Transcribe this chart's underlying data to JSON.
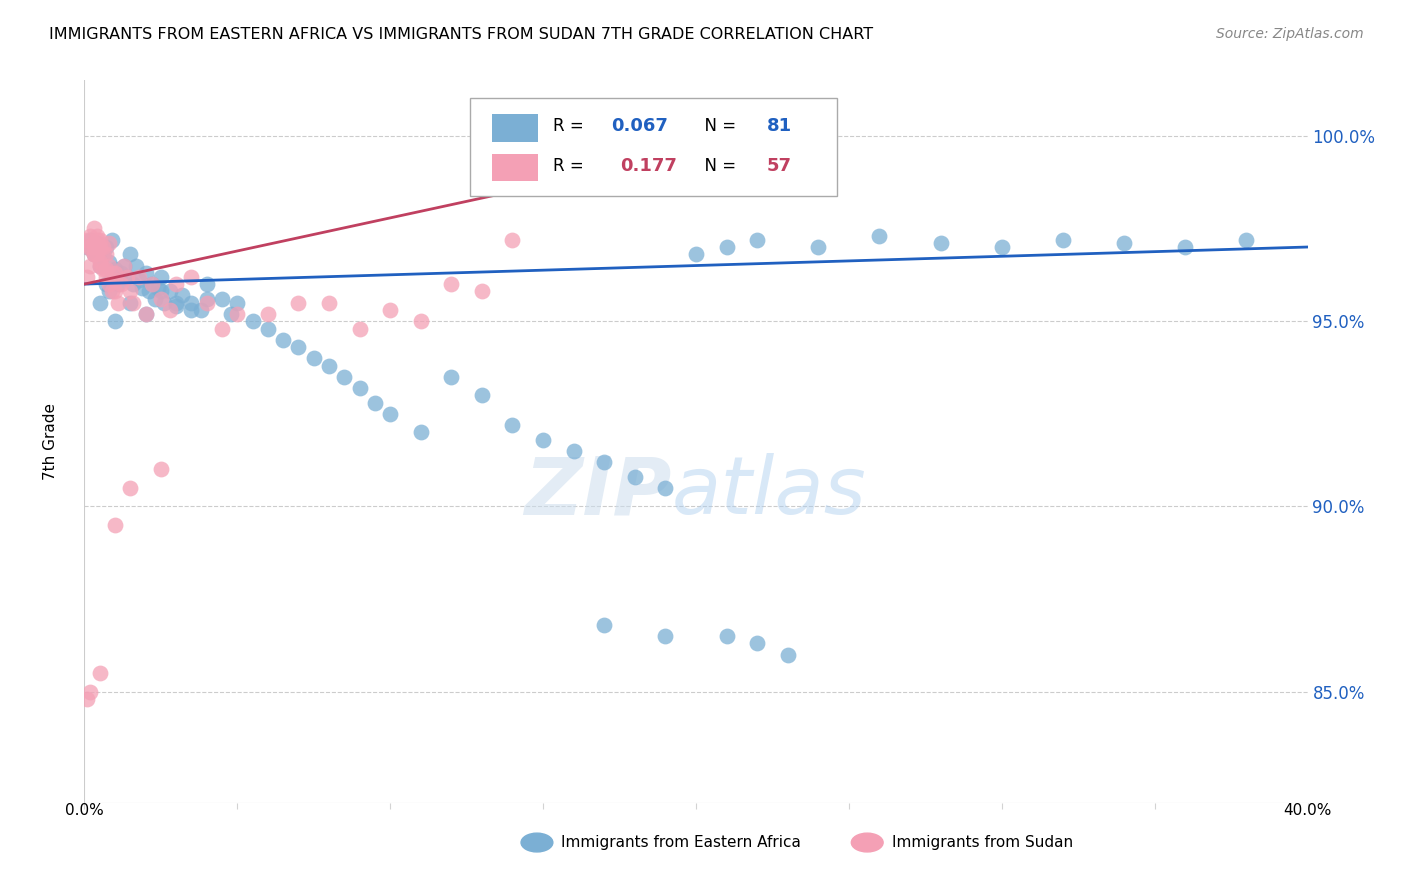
{
  "title": "IMMIGRANTS FROM EASTERN AFRICA VS IMMIGRANTS FROM SUDAN 7TH GRADE CORRELATION CHART",
  "source": "Source: ZipAtlas.com",
  "ylabel": "7th Grade",
  "y_ticks": [
    85.0,
    90.0,
    95.0,
    100.0
  ],
  "y_tick_labels": [
    "85.0%",
    "90.0%",
    "95.0%",
    "100.0%"
  ],
  "xlim": [
    0.0,
    0.4
  ],
  "ylim": [
    82.0,
    101.5
  ],
  "blue_color": "#7bafd4",
  "pink_color": "#f4a0b5",
  "blue_line_color": "#2060c0",
  "pink_line_color": "#c04060",
  "blue_scatter_x": [
    0.001,
    0.002,
    0.003,
    0.004,
    0.005,
    0.006,
    0.007,
    0.008,
    0.009,
    0.01,
    0.011,
    0.012,
    0.013,
    0.014,
    0.015,
    0.016,
    0.017,
    0.018,
    0.019,
    0.02,
    0.021,
    0.022,
    0.023,
    0.024,
    0.025,
    0.026,
    0.028,
    0.03,
    0.032,
    0.035,
    0.038,
    0.04,
    0.045,
    0.048,
    0.05,
    0.055,
    0.06,
    0.065,
    0.07,
    0.075,
    0.08,
    0.085,
    0.09,
    0.095,
    0.1,
    0.11,
    0.12,
    0.13,
    0.14,
    0.15,
    0.16,
    0.17,
    0.18,
    0.19,
    0.2,
    0.21,
    0.22,
    0.24,
    0.26,
    0.28,
    0.3,
    0.32,
    0.34,
    0.36,
    0.38,
    0.005,
    0.007,
    0.008,
    0.009,
    0.01,
    0.015,
    0.02,
    0.025,
    0.03,
    0.035,
    0.04,
    0.17,
    0.19,
    0.21,
    0.22,
    0.23
  ],
  "blue_scatter_y": [
    97.0,
    97.2,
    96.8,
    97.1,
    96.5,
    96.8,
    97.0,
    96.6,
    97.2,
    96.4,
    96.0,
    96.3,
    96.5,
    96.2,
    96.8,
    96.0,
    96.5,
    96.1,
    95.9,
    96.3,
    95.8,
    96.0,
    95.6,
    95.9,
    96.2,
    95.5,
    95.8,
    95.4,
    95.7,
    95.5,
    95.3,
    96.0,
    95.6,
    95.2,
    95.5,
    95.0,
    94.8,
    94.5,
    94.3,
    94.0,
    93.8,
    93.5,
    93.2,
    92.8,
    92.5,
    92.0,
    93.5,
    93.0,
    92.2,
    91.8,
    91.5,
    91.2,
    90.8,
    90.5,
    96.8,
    97.0,
    97.2,
    97.0,
    97.3,
    97.1,
    97.0,
    97.2,
    97.1,
    97.0,
    97.2,
    95.5,
    96.0,
    95.8,
    96.2,
    95.0,
    95.5,
    95.2,
    95.8,
    95.5,
    95.3,
    95.6,
    86.8,
    86.5,
    86.5,
    86.3,
    86.0
  ],
  "pink_scatter_x": [
    0.001,
    0.001,
    0.002,
    0.002,
    0.003,
    0.003,
    0.003,
    0.004,
    0.004,
    0.005,
    0.005,
    0.005,
    0.006,
    0.006,
    0.007,
    0.007,
    0.008,
    0.008,
    0.009,
    0.009,
    0.01,
    0.01,
    0.011,
    0.012,
    0.013,
    0.014,
    0.015,
    0.016,
    0.018,
    0.02,
    0.022,
    0.025,
    0.028,
    0.03,
    0.035,
    0.04,
    0.045,
    0.05,
    0.06,
    0.07,
    0.08,
    0.09,
    0.1,
    0.11,
    0.12,
    0.13,
    0.14,
    0.001,
    0.002,
    0.003,
    0.003,
    0.004,
    0.005,
    0.006,
    0.007,
    0.008,
    0.01
  ],
  "pink_scatter_y": [
    97.0,
    97.2,
    97.3,
    97.0,
    97.5,
    97.1,
    96.8,
    97.2,
    96.8,
    97.0,
    96.5,
    97.2,
    96.4,
    96.8,
    96.2,
    96.8,
    96.0,
    96.5,
    96.3,
    95.8,
    96.1,
    95.8,
    95.5,
    96.0,
    96.5,
    96.2,
    95.8,
    95.5,
    96.2,
    95.2,
    96.0,
    95.6,
    95.3,
    96.0,
    96.2,
    95.5,
    94.8,
    95.2,
    95.2,
    95.5,
    95.5,
    94.8,
    95.3,
    95.0,
    96.0,
    95.8,
    97.2,
    96.2,
    96.5,
    97.0,
    96.8,
    97.3,
    96.6,
    97.0,
    96.4,
    97.1,
    96.3
  ],
  "pink_outlier_x": [
    0.001,
    0.002,
    0.005,
    0.01,
    0.015,
    0.025
  ],
  "pink_outlier_y": [
    84.8,
    85.0,
    85.5,
    89.5,
    90.5,
    91.0
  ],
  "blue_line_x": [
    0.0,
    0.4
  ],
  "blue_line_y": [
    96.0,
    97.0
  ],
  "pink_line_x": [
    0.0,
    0.14
  ],
  "pink_line_y": [
    96.0,
    98.5
  ]
}
